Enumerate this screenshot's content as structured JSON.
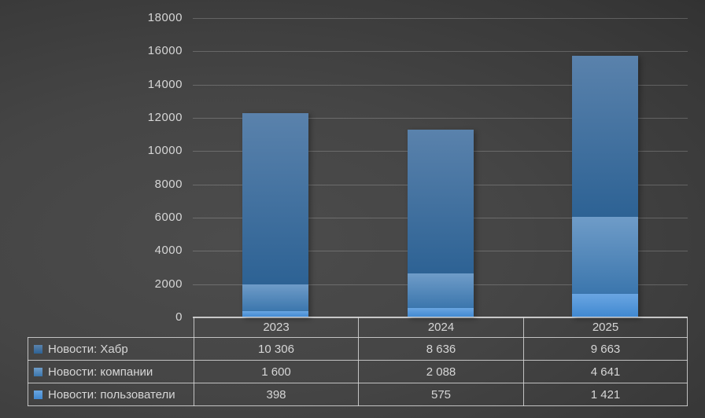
{
  "chart_data": {
    "type": "bar",
    "stacked": true,
    "title": "",
    "xlabel": "",
    "ylabel": "",
    "categories": [
      "2023",
      "2024",
      "2025"
    ],
    "series": [
      {
        "name": "Новости: Хабр",
        "values": [
          10306,
          8636,
          9663
        ],
        "color": "#41719C",
        "gradient_top": "#5A82AC",
        "gradient_bottom": "#2D6294"
      },
      {
        "name": "Новости: компании",
        "values": [
          1600,
          2088,
          4641
        ],
        "color": "#4A87BE",
        "gradient_top": "#6F9CC8",
        "gradient_bottom": "#3B76AD"
      },
      {
        "name": "Новости: пользователи",
        "values": [
          398,
          575,
          1421
        ],
        "color": "#539EDB",
        "gradient_top": "#6AA6E2",
        "gradient_bottom": "#3F87D0"
      }
    ],
    "stack_order_bottom_to_top": [
      "Новости: пользователи",
      "Новости: компании",
      "Новости: Хабр"
    ],
    "ylim": [
      0,
      18000
    ],
    "ytick_step": 2000,
    "yticks": [
      0,
      2000,
      4000,
      6000,
      8000,
      10000,
      12000,
      14000,
      16000,
      18000
    ],
    "grid": true,
    "legend_position": "data-table-left"
  },
  "data_table": {
    "header": [
      "2023",
      "2024",
      "2025"
    ],
    "rows": [
      {
        "label": "Новости: Хабр",
        "cells": [
          "10 306",
          "8 636",
          "9 663"
        ]
      },
      {
        "label": "Новости: компании",
        "cells": [
          "1 600",
          "2 088",
          "4 641"
        ]
      },
      {
        "label": "Новости: пользователи",
        "cells": [
          "398",
          "575",
          "1 421"
        ]
      }
    ]
  },
  "colors": {
    "background_center": "#4c4c4c",
    "background_edge": "#232323",
    "text": "#d6d6d6",
    "gridline": "rgba(255,255,255,0.20)",
    "axis_line": "rgba(230,230,230,0.75)",
    "table_border": "rgba(216,216,216,0.85)"
  }
}
